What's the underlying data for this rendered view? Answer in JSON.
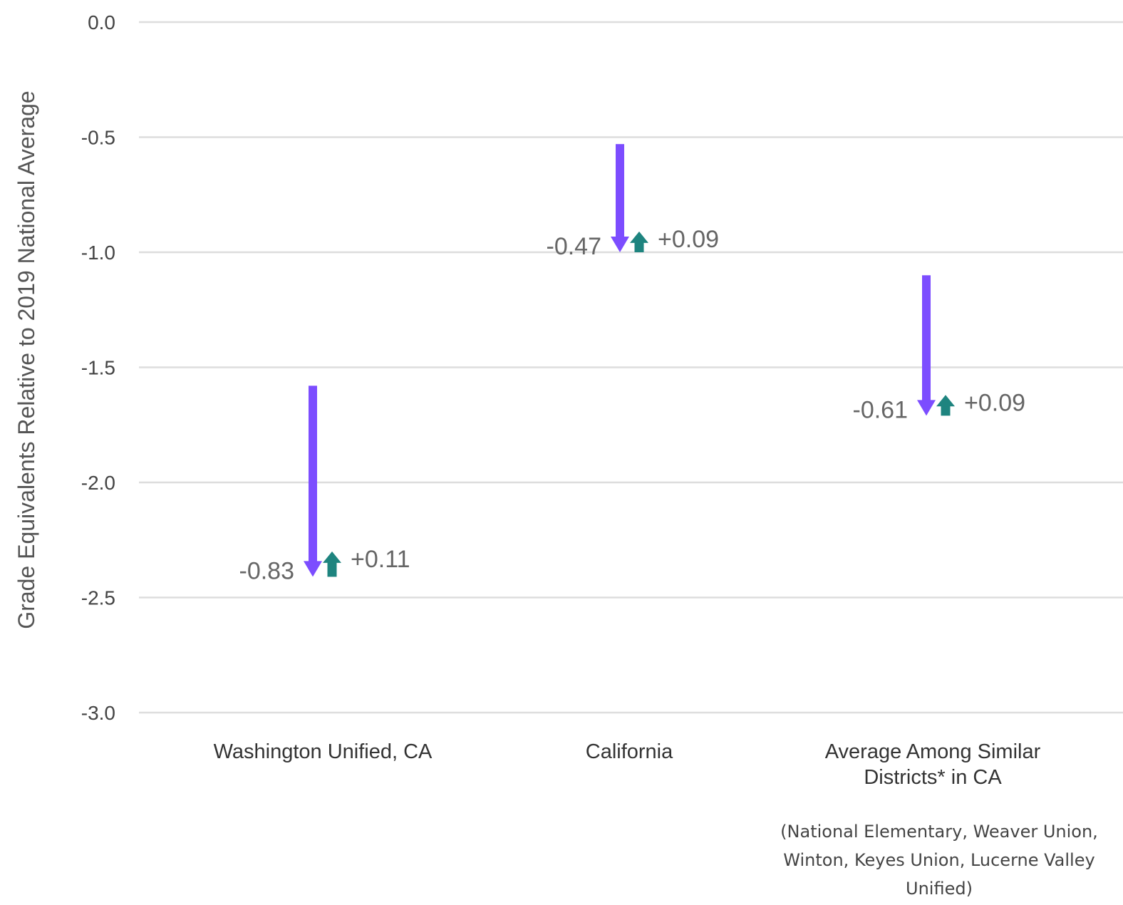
{
  "chart_data": {
    "type": "arrow",
    "ylabel": "Grade Equivalents Relative to 2019 National Average",
    "ylim": [
      -3.0,
      0.0
    ],
    "yticks": [
      0.0,
      -0.5,
      -1.0,
      -1.5,
      -2.0,
      -2.5,
      -3.0
    ],
    "ytick_labels": [
      "0.0",
      "-0.5",
      "-1.0",
      "-1.5",
      "-2.0",
      "-2.5",
      "-3.0"
    ],
    "grid": true,
    "colors": {
      "decline": "#7c4dff",
      "recovery": "#1e847f",
      "grid": "#dddddd"
    },
    "categories": [
      {
        "label_lines": [
          "Washington Unified, CA"
        ],
        "note_lines": [],
        "start": -1.58,
        "decline": -0.83,
        "decline_label": "-0.83",
        "recovery": 0.11,
        "recovery_label": "+0.11"
      },
      {
        "label_lines": [
          "California"
        ],
        "note_lines": [],
        "start": -0.53,
        "decline": -0.47,
        "decline_label": "-0.47",
        "recovery": 0.09,
        "recovery_label": "+0.09"
      },
      {
        "label_lines": [
          "Average Among Similar",
          "Districts* in CA"
        ],
        "note_lines": [
          "(National Elementary, Weaver Union,",
          "Winton, Keyes Union, Lucerne Valley",
          "Unified)"
        ],
        "start": -1.1,
        "decline": -0.61,
        "decline_label": "-0.61",
        "recovery": 0.09,
        "recovery_label": "+0.09"
      }
    ]
  }
}
